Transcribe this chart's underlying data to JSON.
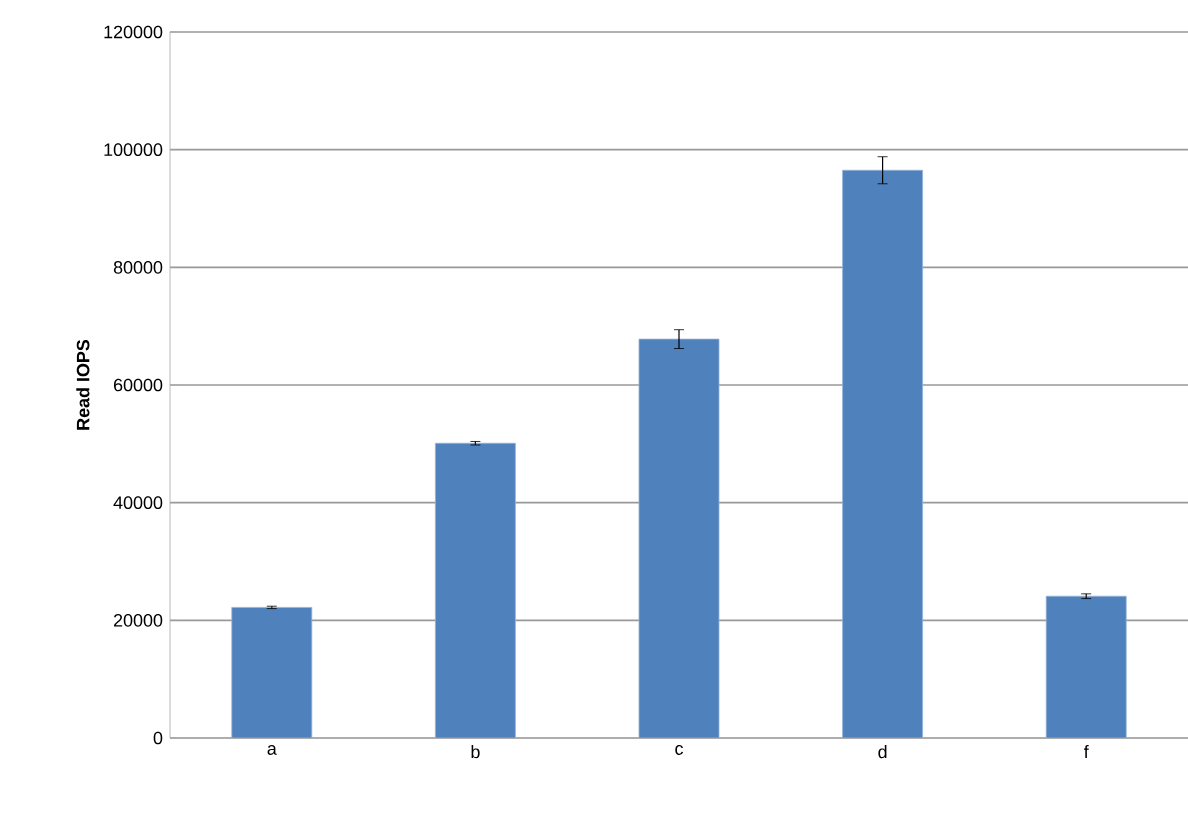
{
  "chart_data": {
    "type": "bar",
    "ylabel": "Read IOPS",
    "categories": [
      "a",
      "b",
      "c",
      "d",
      "f"
    ],
    "values": [
      22200,
      50100,
      67800,
      96500,
      24100
    ],
    "errors": [
      200,
      300,
      1600,
      2300,
      400
    ],
    "color": "#4f81bd",
    "ylim": [
      0,
      120000
    ],
    "yticks": [
      0,
      20000,
      40000,
      60000,
      80000,
      100000,
      120000
    ],
    "grid": "y"
  }
}
